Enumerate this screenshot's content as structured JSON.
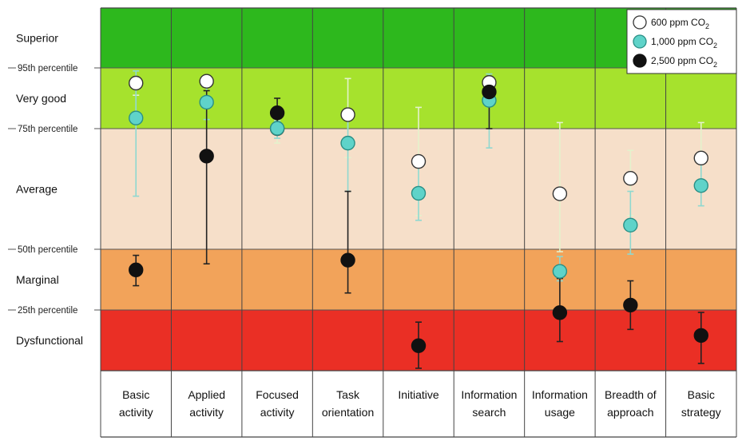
{
  "chart_data": {
    "type": "scatter",
    "title": "",
    "xlabel": "",
    "ylabel": "",
    "ylim": [
      0,
      1
    ],
    "categories": [
      [
        "Basic",
        "activity"
      ],
      [
        "Applied",
        "activity"
      ],
      [
        "Focused",
        "activity"
      ],
      [
        "Task",
        "orientation"
      ],
      [
        "Initiative"
      ],
      [
        "Information",
        "search"
      ],
      [
        "Information",
        "usage"
      ],
      [
        "Breadth of",
        "approach"
      ],
      [
        "Basic",
        "strategy"
      ]
    ],
    "bands": [
      {
        "label": "Superior",
        "from": 0.95,
        "to": 1.0,
        "color": "#2db81d"
      },
      {
        "label": "Very good",
        "from": 0.75,
        "to": 0.95,
        "color": "#a6e22d"
      },
      {
        "label": "Average",
        "from": 0.5,
        "to": 0.75,
        "color": "#f6dfc9"
      },
      {
        "label": "Marginal",
        "from": 0.25,
        "to": 0.5,
        "color": "#f2a35a"
      },
      {
        "label": "Dysfunctional",
        "from": 0.0,
        "to": 0.25,
        "color": "#ea2f25"
      }
    ],
    "percentile_lines": [
      {
        "label": "95th percentile",
        "value": 0.95
      },
      {
        "label": "75th percentile",
        "value": 0.75
      },
      {
        "label": "50th percentile",
        "value": 0.5
      },
      {
        "label": "25th percentile",
        "value": 0.25
      }
    ],
    "legend_position": "top-right",
    "series": [
      {
        "name": "600 ppm CO",
        "subscript": "2",
        "fill": "#ffffff",
        "stroke": "#333333",
        "errcolor": "#e4f2cc",
        "points": [
          {
            "y": 1.0,
            "lo": 0.86,
            "hi": 1.12
          },
          {
            "y": 0.906,
            "lo": 0.82,
            "hi": 0.99
          },
          {
            "y": 0.75,
            "lo": 0.72,
            "hi": 0.78
          },
          {
            "y": 0.796,
            "lo": 0.69,
            "hi": 0.915
          },
          {
            "y": 0.682,
            "lo": 0.57,
            "hi": 0.82
          },
          {
            "y": 0.902,
            "lo": 0.86,
            "hi": 1.035
          },
          {
            "y": 0.615,
            "lo": 0.49,
            "hi": 0.77
          },
          {
            "y": 0.647,
            "lo": 0.57,
            "hi": 0.705
          },
          {
            "y": 0.689,
            "lo": 0.625,
            "hi": 0.77
          }
        ]
      },
      {
        "name": "1,000 ppm CO",
        "subscript": "2",
        "fill": "#5fd3c9",
        "stroke": "#2a8f86",
        "errcolor": "#8fd8d0",
        "points": [
          {
            "y": 0.785,
            "lo": 0.61,
            "hi": 0.94
          },
          {
            "y": 0.837,
            "lo": 0.78,
            "hi": 0.92
          },
          {
            "y": 0.751,
            "lo": 0.73,
            "hi": 0.775
          },
          {
            "y": 0.72,
            "lo": 0.62,
            "hi": 0.8
          },
          {
            "y": 0.616,
            "lo": 0.56,
            "hi": 0.67
          },
          {
            "y": 0.843,
            "lo": 0.71,
            "hi": 0.93
          },
          {
            "y": 0.409,
            "lo": 0.37,
            "hi": 0.47
          },
          {
            "y": 0.55,
            "lo": 0.48,
            "hi": 0.62
          },
          {
            "y": 0.632,
            "lo": 0.59,
            "hi": 0.68
          }
        ]
      },
      {
        "name": "2,500 ppm CO",
        "subscript": "2",
        "fill": "#111111",
        "stroke": "#111111",
        "errcolor": "#222222",
        "points": [
          {
            "y": 0.415,
            "lo": 0.35,
            "hi": 0.475
          },
          {
            "y": 0.693,
            "lo": 0.44,
            "hi": 1.025
          },
          {
            "y": 0.802,
            "lo": 0.76,
            "hi": 0.85
          },
          {
            "y": 0.455,
            "lo": 0.32,
            "hi": 0.62
          },
          {
            "y": 0.103,
            "lo": 0.01,
            "hi": 0.2
          },
          {
            "y": 0.871,
            "lo": 0.75,
            "hi": 1.0
          },
          {
            "y": 0.239,
            "lo": 0.12,
            "hi": 0.38
          },
          {
            "y": 0.27,
            "lo": 0.17,
            "hi": 0.37
          },
          {
            "y": 0.145,
            "lo": 0.03,
            "hi": 0.24
          }
        ]
      }
    ]
  }
}
